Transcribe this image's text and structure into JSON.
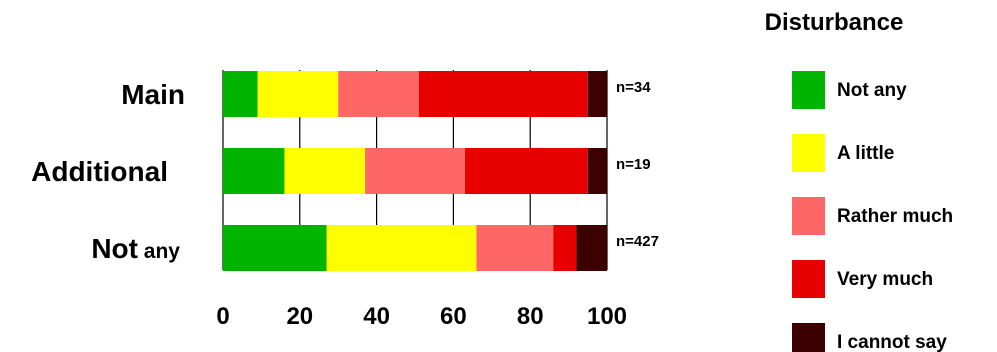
{
  "chart_data": {
    "type": "bar",
    "orientation": "horizontal",
    "stacked": true,
    "legend_title": "Disturbance",
    "categories": [
      {
        "main": "Main",
        "suffix": ""
      },
      {
        "main": "Additional",
        "suffix": ""
      },
      {
        "main": "Not",
        "suffix": " any"
      }
    ],
    "n_labels": [
      "n=34",
      "n=19",
      "n=427"
    ],
    "series": [
      {
        "name": "Not any",
        "color": "#00b400",
        "values": [
          9,
          16,
          27
        ]
      },
      {
        "name": "A little",
        "color": "#ffff00",
        "values": [
          21,
          21,
          39
        ]
      },
      {
        "name": "Rather much",
        "color": "#ff6666",
        "values": [
          21,
          26,
          20
        ]
      },
      {
        "name": "Very much",
        "color": "#e60000",
        "values": [
          44,
          32,
          6
        ]
      },
      {
        "name": "I cannot say",
        "color": "#3c0000",
        "values": [
          5,
          5,
          8
        ]
      }
    ],
    "x_ticks": [
      0,
      20,
      40,
      60,
      80,
      100
    ],
    "xlim": [
      0,
      100
    ],
    "grid": "vertical",
    "legend_position": "right"
  }
}
